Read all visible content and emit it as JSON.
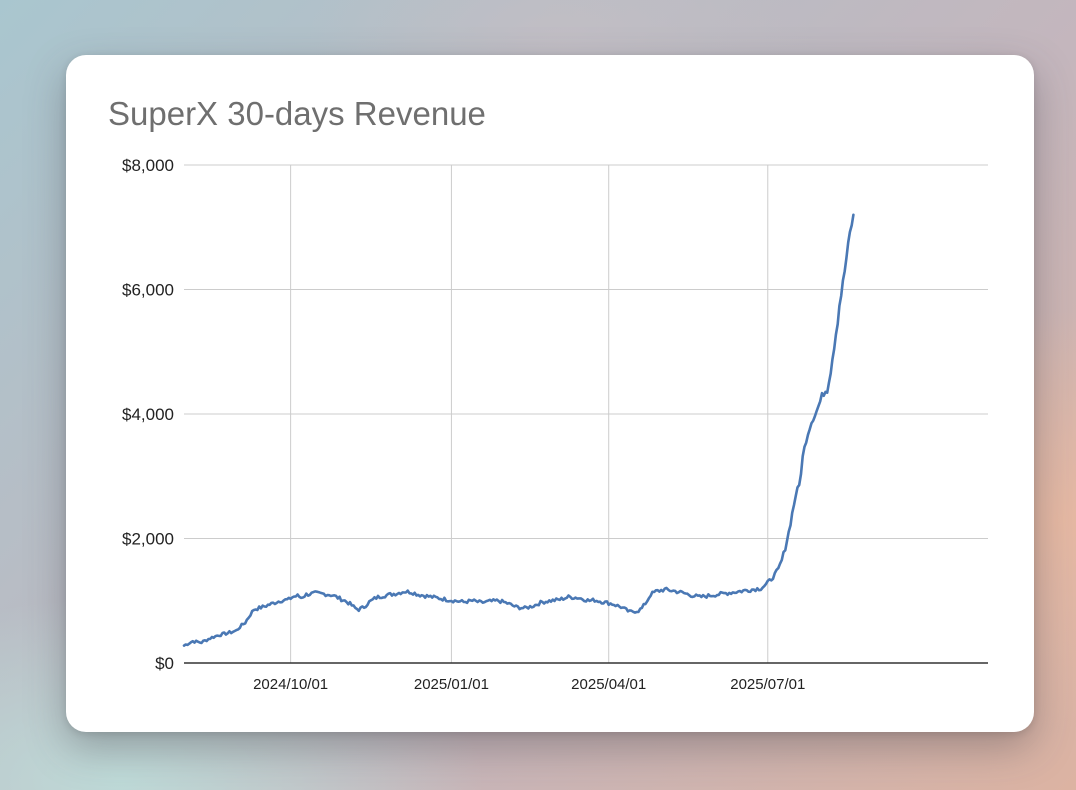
{
  "chart_data": {
    "type": "line",
    "title": "SuperX 30-days Revenue",
    "xlabel": "",
    "ylabel": "",
    "ylim": [
      0,
      8000
    ],
    "xlim_days": [
      0,
      460
    ],
    "x_ticks": [
      {
        "day": 61,
        "label": "2024/10/01"
      },
      {
        "day": 153,
        "label": "2025/01/01"
      },
      {
        "day": 243,
        "label": "2025/04/01"
      },
      {
        "day": 334,
        "label": "2025/07/01"
      }
    ],
    "y_ticks": [
      {
        "value": 0,
        "label": "$0"
      },
      {
        "value": 2000,
        "label": "$2,000"
      },
      {
        "value": 4000,
        "label": "$4,000"
      },
      {
        "value": 6000,
        "label": "$6,000"
      },
      {
        "value": 8000,
        "label": "$8,000"
      }
    ],
    "grid": true,
    "legend": "none",
    "line_color": "#4a78b4",
    "series": [
      {
        "name": "30-days Revenue",
        "x": [
          0,
          5,
          10,
          15,
          20,
          25,
          30,
          32,
          35,
          38,
          40,
          45,
          50,
          55,
          60,
          62,
          65,
          67,
          70,
          75,
          80,
          85,
          88,
          92,
          95,
          98,
          100,
          103,
          106,
          110,
          114,
          118,
          122,
          126,
          130,
          134,
          138,
          142,
          146,
          150,
          155,
          160,
          165,
          170,
          175,
          180,
          185,
          190,
          195,
          200,
          205,
          210,
          215,
          220,
          225,
          228,
          232,
          235,
          240,
          245,
          250,
          255,
          260,
          262,
          265,
          267,
          270,
          275,
          280,
          285,
          290,
          295,
          300,
          305,
          310,
          315,
          320,
          325,
          330,
          333,
          336,
          338,
          340,
          342,
          344,
          346,
          348,
          350,
          352,
          354,
          356,
          358,
          360,
          362,
          364,
          366,
          368,
          370,
          372,
          374,
          375,
          377,
          379,
          381,
          383
        ],
        "values": [
          280,
          350,
          330,
          400,
          450,
          480,
          520,
          580,
          650,
          780,
          860,
          900,
          950,
          1000,
          1020,
          1060,
          1080,
          1050,
          1100,
          1120,
          1110,
          1090,
          1050,
          1000,
          950,
          880,
          860,
          900,
          980,
          1050,
          1080,
          1100,
          1120,
          1150,
          1140,
          1100,
          1080,
          1060,
          1040,
          1020,
          1000,
          980,
          1000,
          970,
          990,
          1000,
          960,
          900,
          880,
          920,
          980,
          1000,
          1020,
          1060,
          1050,
          1030,
          1000,
          1010,
          980,
          950,
          900,
          820,
          840,
          880,
          1000,
          1100,
          1150,
          1180,
          1160,
          1130,
          1090,
          1060,
          1080,
          1100,
          1120,
          1140,
          1160,
          1180,
          1200,
          1260,
          1350,
          1420,
          1500,
          1650,
          1850,
          2100,
          2400,
          2700,
          2850,
          3300,
          3600,
          3800,
          3950,
          4050,
          4200,
          4350,
          4400,
          4700,
          5100,
          5500,
          5750,
          6100,
          6500,
          6900,
          7200
        ]
      }
    ]
  }
}
